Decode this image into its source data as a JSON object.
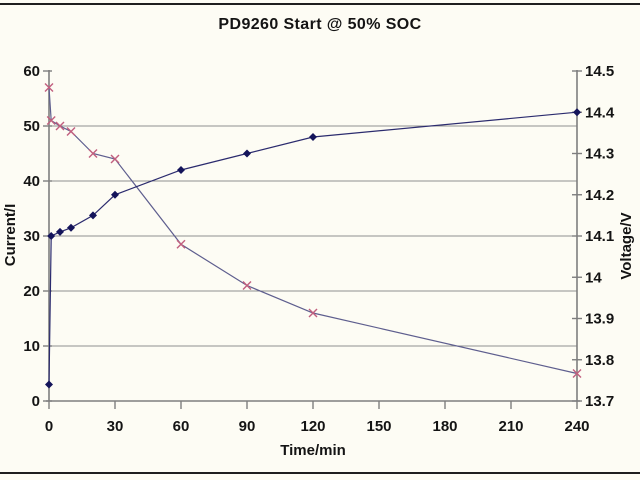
{
  "page": {
    "background": "#fdfcf4",
    "rule_color": "#1f1f1f"
  },
  "chart_data": {
    "type": "line",
    "title": "PD9260 Start @ 50% SOC",
    "xlabel": "Time/min",
    "ylabel_left": "Current/I",
    "ylabel_right": "Voltage/V",
    "xlim": [
      0,
      240
    ],
    "x_ticks": [
      0,
      30,
      60,
      90,
      120,
      150,
      180,
      210,
      240
    ],
    "ylim_left": [
      0,
      60
    ],
    "left_ticks": [
      0,
      10,
      20,
      30,
      40,
      50,
      60
    ],
    "ylim_right": [
      13.7,
      14.5
    ],
    "right_ticks": [
      13.7,
      13.8,
      13.9,
      14,
      14.1,
      14.2,
      14.3,
      14.4,
      14.5
    ],
    "grid": "horizontal-major-only",
    "legend": "none",
    "series": [
      {
        "name": "Current",
        "axis": "left",
        "marker": "x",
        "line_color": "#5e5e8e",
        "marker_color": "#c25f7e",
        "x": [
          0,
          1,
          5,
          10,
          20,
          30,
          60,
          90,
          120,
          240
        ],
        "values": [
          57,
          51,
          50,
          49,
          45,
          44,
          28.5,
          21,
          16,
          5
        ]
      },
      {
        "name": "Voltage",
        "axis": "right",
        "marker": "diamond",
        "line_color": "#2b2b6e",
        "marker_color": "#14145a",
        "x": [
          0,
          1,
          5,
          10,
          20,
          30,
          60,
          90,
          120,
          240
        ],
        "values": [
          13.74,
          14.1,
          14.11,
          14.12,
          14.15,
          14.2,
          14.26,
          14.3,
          14.34,
          14.4
        ]
      }
    ],
    "colors": {
      "grid": "#8f8f8f",
      "axis": "#7e7e7e",
      "text": "#141414"
    }
  }
}
